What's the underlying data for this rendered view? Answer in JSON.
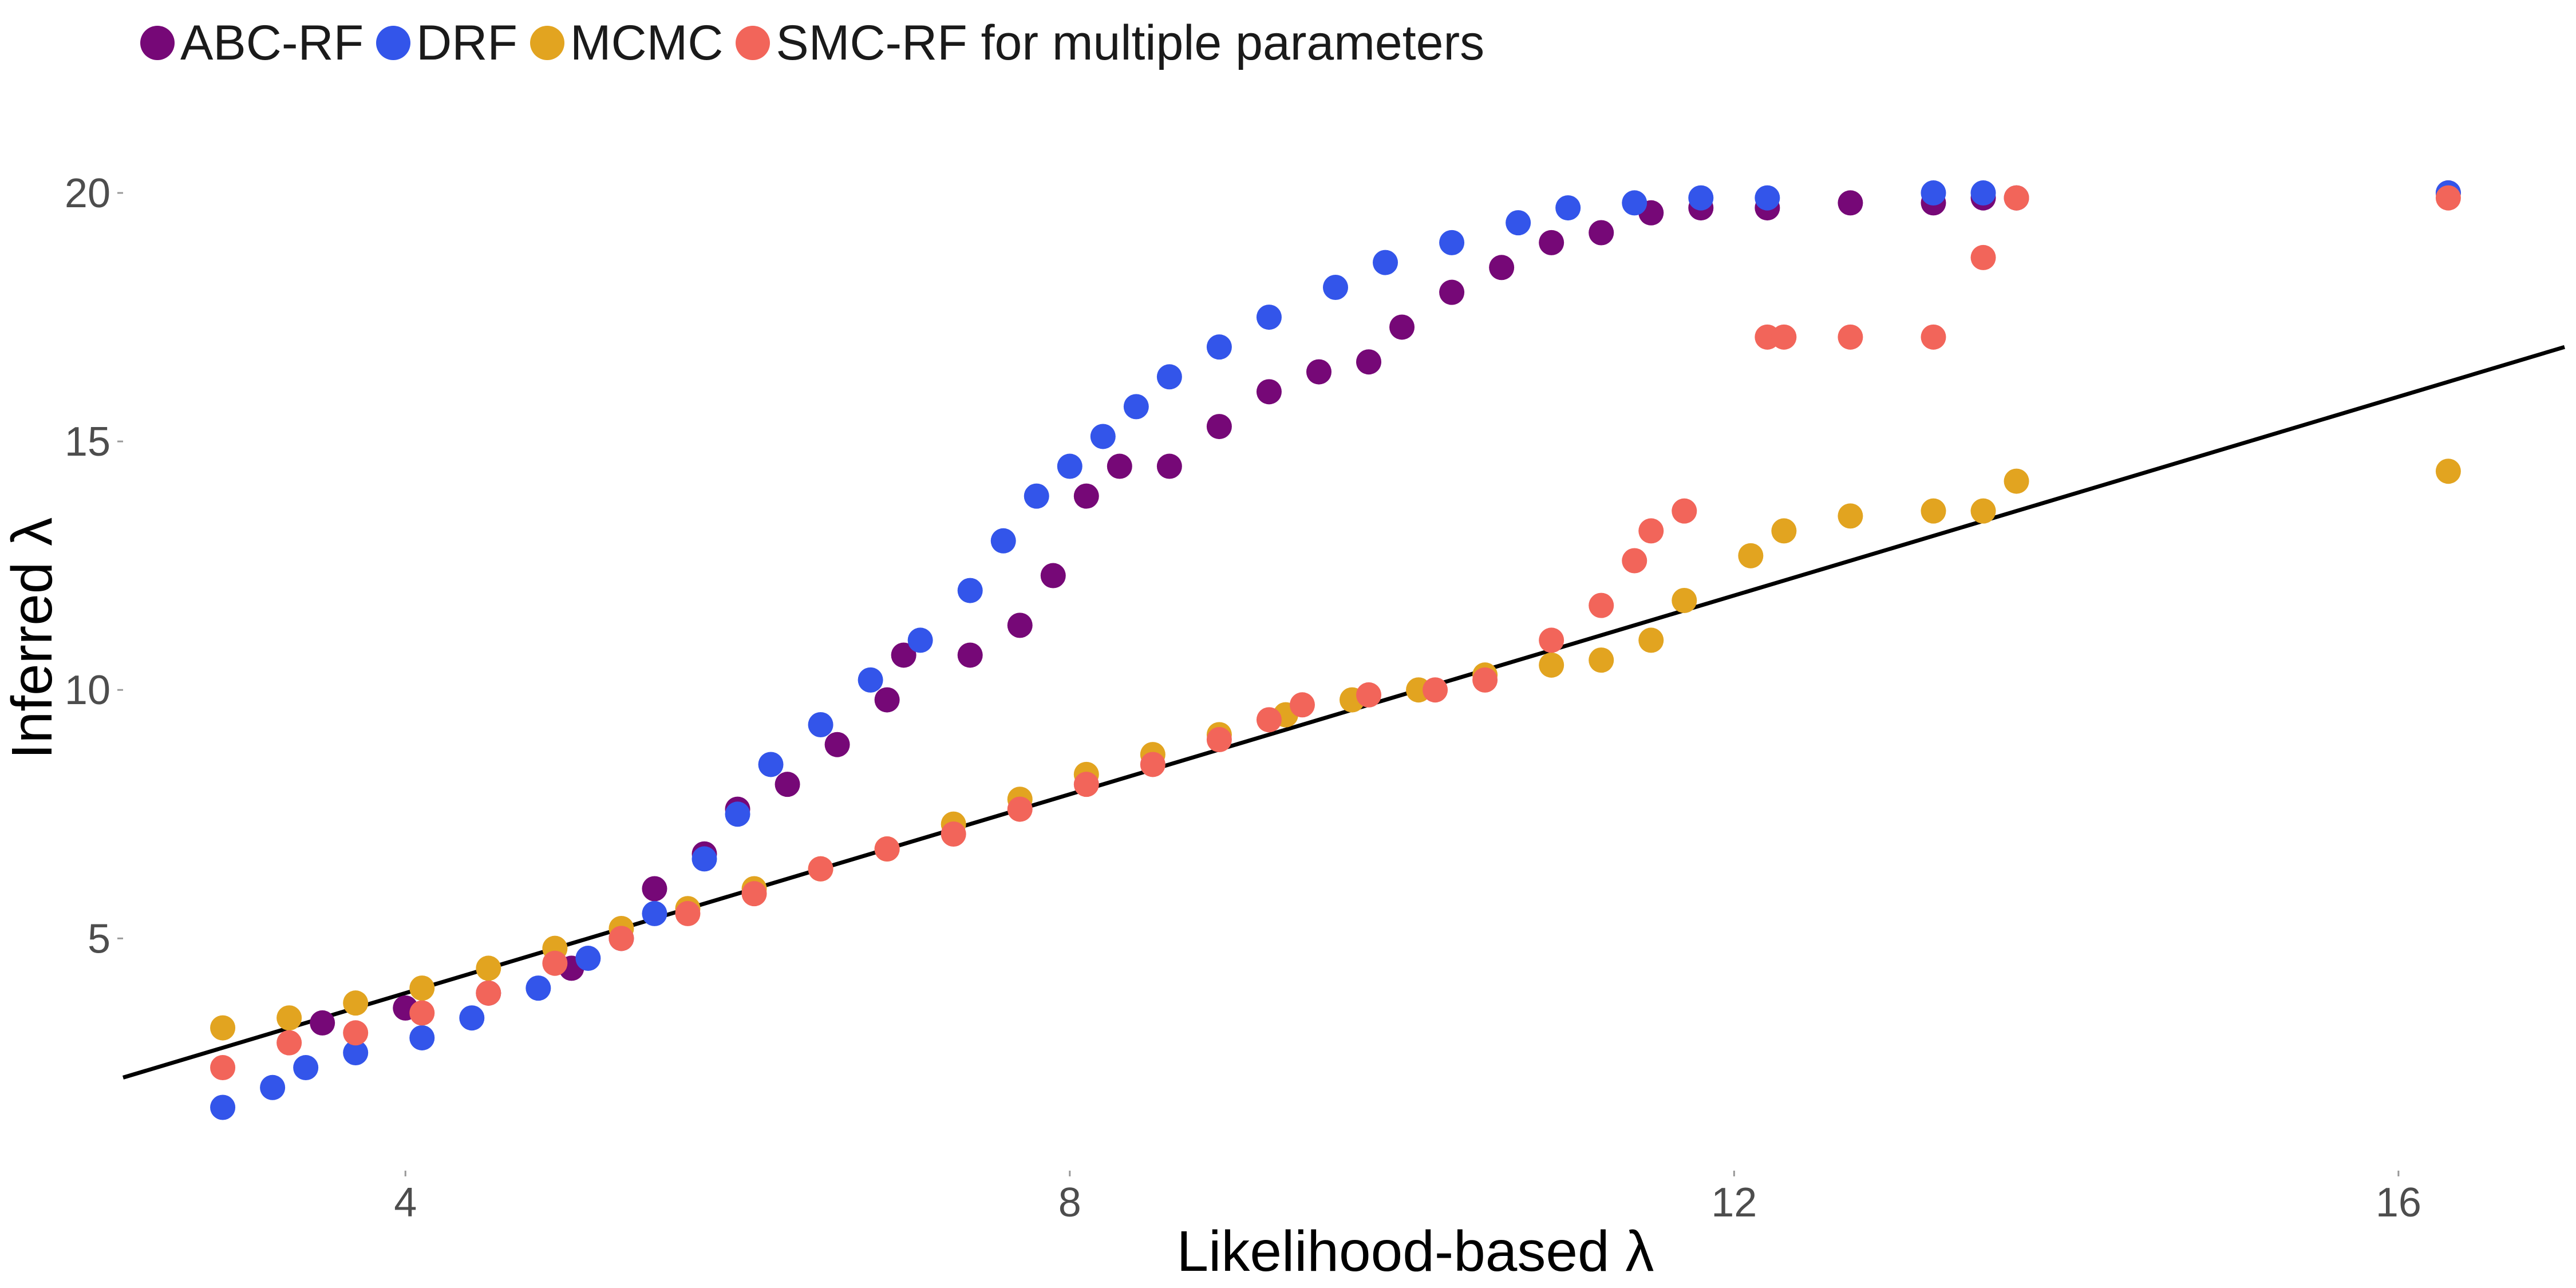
{
  "chart_data": {
    "type": "scatter",
    "xlabel": "Likelihood-based  λ",
    "ylabel": "Inferred  λ",
    "xlim": [
      2.3,
      17.0
    ],
    "ylim": [
      0.5,
      22.5
    ],
    "xticks": [
      4,
      8,
      12,
      16
    ],
    "yticks": [
      5,
      10,
      15,
      20
    ],
    "grid": false,
    "legend_position": "top-left",
    "reference_line": {
      "x": [
        2.3,
        17.0
      ],
      "y": [
        2.2,
        16.9
      ],
      "color": "#000000"
    },
    "series": [
      {
        "name": "ABC-RF",
        "color": "#760877",
        "points": [
          [
            3.5,
            3.3
          ],
          [
            4.0,
            3.6
          ],
          [
            4.5,
            3.9
          ],
          [
            5.0,
            4.4
          ],
          [
            5.3,
            5.0
          ],
          [
            5.5,
            6.0
          ],
          [
            5.8,
            6.7
          ],
          [
            6.0,
            7.6
          ],
          [
            6.3,
            8.1
          ],
          [
            6.6,
            8.9
          ],
          [
            6.9,
            9.8
          ],
          [
            7.0,
            10.7
          ],
          [
            7.4,
            10.7
          ],
          [
            7.7,
            11.3
          ],
          [
            7.9,
            12.3
          ],
          [
            8.1,
            13.9
          ],
          [
            8.3,
            14.5
          ],
          [
            8.6,
            14.5
          ],
          [
            8.9,
            15.3
          ],
          [
            9.2,
            16.0
          ],
          [
            9.5,
            16.4
          ],
          [
            9.8,
            16.6
          ],
          [
            10.0,
            17.3
          ],
          [
            10.3,
            18.0
          ],
          [
            10.6,
            18.5
          ],
          [
            10.9,
            19.0
          ],
          [
            11.2,
            19.2
          ],
          [
            11.5,
            19.6
          ],
          [
            11.8,
            19.7
          ],
          [
            12.2,
            19.7
          ],
          [
            12.7,
            19.8
          ],
          [
            13.2,
            19.8
          ],
          [
            13.5,
            19.9
          ],
          [
            13.7,
            19.9
          ],
          [
            16.3,
            20.0
          ]
        ]
      },
      {
        "name": "DRF",
        "color": "#3355ea",
        "points": [
          [
            2.9,
            1.6
          ],
          [
            3.2,
            2.0
          ],
          [
            3.4,
            2.4
          ],
          [
            3.7,
            2.7
          ],
          [
            4.1,
            3.0
          ],
          [
            4.4,
            3.4
          ],
          [
            4.8,
            4.0
          ],
          [
            5.1,
            4.6
          ],
          [
            5.5,
            5.5
          ],
          [
            5.8,
            6.6
          ],
          [
            6.0,
            7.5
          ],
          [
            6.2,
            8.5
          ],
          [
            6.5,
            9.3
          ],
          [
            6.8,
            10.2
          ],
          [
            7.1,
            11.0
          ],
          [
            7.4,
            12.0
          ],
          [
            7.6,
            13.0
          ],
          [
            7.8,
            13.9
          ],
          [
            8.0,
            14.5
          ],
          [
            8.2,
            15.1
          ],
          [
            8.4,
            15.7
          ],
          [
            8.6,
            16.3
          ],
          [
            8.9,
            16.9
          ],
          [
            9.2,
            17.5
          ],
          [
            9.6,
            18.1
          ],
          [
            9.9,
            18.6
          ],
          [
            10.3,
            19.0
          ],
          [
            10.7,
            19.4
          ],
          [
            11.0,
            19.7
          ],
          [
            11.4,
            19.8
          ],
          [
            11.8,
            19.9
          ],
          [
            12.2,
            19.9
          ],
          [
            13.2,
            20.0
          ],
          [
            13.5,
            20.0
          ],
          [
            16.3,
            20.0
          ]
        ]
      },
      {
        "name": "MCMC",
        "color": "#e2a420",
        "points": [
          [
            2.9,
            3.2
          ],
          [
            3.3,
            3.4
          ],
          [
            3.7,
            3.7
          ],
          [
            4.1,
            4.0
          ],
          [
            4.5,
            4.4
          ],
          [
            4.9,
            4.8
          ],
          [
            5.3,
            5.2
          ],
          [
            5.7,
            5.6
          ],
          [
            6.1,
            6.0
          ],
          [
            6.5,
            6.4
          ],
          [
            6.9,
            6.8
          ],
          [
            7.3,
            7.3
          ],
          [
            7.7,
            7.8
          ],
          [
            8.1,
            8.3
          ],
          [
            8.5,
            8.7
          ],
          [
            8.9,
            9.1
          ],
          [
            9.3,
            9.5
          ],
          [
            9.7,
            9.8
          ],
          [
            10.1,
            10.0
          ],
          [
            10.5,
            10.3
          ],
          [
            10.9,
            10.5
          ],
          [
            11.2,
            10.6
          ],
          [
            11.5,
            11.0
          ],
          [
            11.7,
            11.8
          ],
          [
            12.1,
            12.7
          ],
          [
            12.3,
            13.2
          ],
          [
            12.7,
            13.5
          ],
          [
            13.2,
            13.6
          ],
          [
            13.5,
            13.6
          ],
          [
            13.7,
            14.2
          ],
          [
            16.3,
            14.4
          ]
        ]
      },
      {
        "name": "SMC-RF for multiple parameters",
        "color": "#f2655a",
        "points": [
          [
            2.9,
            2.4
          ],
          [
            3.3,
            2.9
          ],
          [
            3.7,
            3.1
          ],
          [
            4.1,
            3.5
          ],
          [
            4.5,
            3.9
          ],
          [
            4.9,
            4.5
          ],
          [
            5.3,
            5.0
          ],
          [
            5.7,
            5.5
          ],
          [
            6.1,
            5.9
          ],
          [
            6.5,
            6.4
          ],
          [
            6.9,
            6.8
          ],
          [
            7.3,
            7.1
          ],
          [
            7.7,
            7.6
          ],
          [
            8.1,
            8.1
          ],
          [
            8.5,
            8.5
          ],
          [
            8.9,
            9.0
          ],
          [
            9.2,
            9.4
          ],
          [
            9.4,
            9.7
          ],
          [
            9.8,
            9.9
          ],
          [
            10.2,
            10.0
          ],
          [
            10.5,
            10.2
          ],
          [
            10.9,
            11.0
          ],
          [
            11.2,
            11.7
          ],
          [
            11.4,
            12.6
          ],
          [
            11.5,
            13.2
          ],
          [
            11.7,
            13.6
          ],
          [
            12.2,
            17.1
          ],
          [
            12.3,
            17.1
          ],
          [
            12.7,
            17.1
          ],
          [
            13.2,
            17.1
          ],
          [
            13.5,
            18.7
          ],
          [
            13.7,
            19.9
          ],
          [
            16.3,
            19.9
          ]
        ]
      }
    ]
  }
}
